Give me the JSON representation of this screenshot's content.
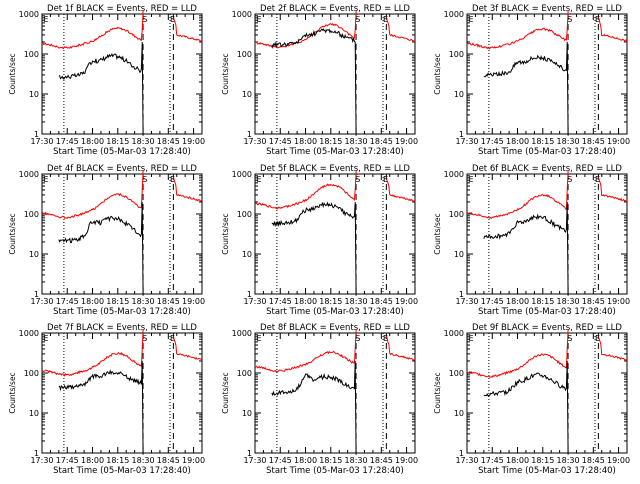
{
  "chart_data": [
    {
      "type": "line",
      "title": "Det 1f BLACK = Events, RED = LLD",
      "xlabel": "Start Time (05-Mar-03 17:28:40)",
      "ylabel": "Counts/sec",
      "x_ticks": [
        "17:30",
        "17:45",
        "18:00",
        "18:15",
        "18:30",
        "18:45",
        "19:00"
      ],
      "y_ticks": [
        "1",
        "10",
        "100",
        "1000"
      ],
      "ylim": [
        1,
        1000
      ],
      "yscale": "log",
      "series": [
        {
          "name": "Events",
          "color": "#000000"
        },
        {
          "name": "LLD",
          "color": "#ff0000"
        }
      ]
    },
    {
      "type": "line",
      "title": "Det 2f BLACK = Events, RED = LLD",
      "xlabel": "Start Time (05-Mar-03 17:28:40)",
      "ylabel": "Counts/sec",
      "x_ticks": [
        "17:30",
        "17:45",
        "18:00",
        "18:15",
        "18:30",
        "18:45",
        "19:00"
      ],
      "y_ticks": [
        "1",
        "10",
        "100",
        "1000"
      ],
      "ylim": [
        1,
        1000
      ],
      "yscale": "log",
      "series": [
        {
          "name": "Events",
          "color": "#000000"
        },
        {
          "name": "LLD",
          "color": "#ff0000"
        }
      ]
    },
    {
      "type": "line",
      "title": "Det 3f BLACK = Events, RED = LLD",
      "xlabel": "Start Time (05-Mar-03 17:28:40)",
      "ylabel": "Counts/sec",
      "x_ticks": [
        "17:30",
        "17:45",
        "18:00",
        "18:15",
        "18:30",
        "18:45",
        "19:00"
      ],
      "y_ticks": [
        "1",
        "10",
        "100",
        "1000"
      ],
      "ylim": [
        1,
        1000
      ],
      "yscale": "log",
      "series": [
        {
          "name": "Events",
          "color": "#000000"
        },
        {
          "name": "LLD",
          "color": "#ff0000"
        }
      ]
    },
    {
      "type": "line",
      "title": "Det 4f BLACK = Events, RED = LLD",
      "xlabel": "Start Time (05-Mar-03 17:28:40)",
      "ylabel": "Counts/sec",
      "x_ticks": [
        "17:30",
        "17:45",
        "18:00",
        "18:15",
        "18:30",
        "18:45",
        "19:00"
      ],
      "y_ticks": [
        "1",
        "10",
        "100",
        "1000"
      ],
      "ylim": [
        1,
        1000
      ],
      "yscale": "log",
      "series": [
        {
          "name": "Events",
          "color": "#000000"
        },
        {
          "name": "LLD",
          "color": "#ff0000"
        }
      ]
    },
    {
      "type": "line",
      "title": "Det 5f BLACK = Events, RED = LLD",
      "xlabel": "Start Time (05-Mar-03 17:28:40)",
      "ylabel": "Counts/sec",
      "x_ticks": [
        "17:30",
        "17:45",
        "18:00",
        "18:15",
        "18:30",
        "18:45",
        "19:00"
      ],
      "y_ticks": [
        "1",
        "10",
        "100",
        "1000"
      ],
      "ylim": [
        1,
        1000
      ],
      "yscale": "log",
      "series": [
        {
          "name": "Events",
          "color": "#000000"
        },
        {
          "name": "LLD",
          "color": "#ff0000"
        }
      ]
    },
    {
      "type": "line",
      "title": "Det 6f BLACK = Events, RED = LLD",
      "xlabel": "Start Time (05-Mar-03 17:28:40)",
      "ylabel": "Counts/sec",
      "x_ticks": [
        "17:30",
        "17:45",
        "18:00",
        "18:15",
        "18:30",
        "18:45",
        "19:00"
      ],
      "y_ticks": [
        "1",
        "10",
        "100",
        "1000"
      ],
      "ylim": [
        1,
        1000
      ],
      "yscale": "log",
      "series": [
        {
          "name": "Events",
          "color": "#000000"
        },
        {
          "name": "LLD",
          "color": "#ff0000"
        }
      ]
    },
    {
      "type": "line",
      "title": "Det 7f BLACK = Events, RED = LLD",
      "xlabel": "Start Time (05-Mar-03 17:28:40)",
      "ylabel": "Counts/sec",
      "x_ticks": [
        "17:30",
        "17:45",
        "18:00",
        "18:15",
        "18:30",
        "18:45",
        "19:00"
      ],
      "y_ticks": [
        "1",
        "10",
        "100",
        "1000"
      ],
      "ylim": [
        1,
        1000
      ],
      "yscale": "log",
      "series": [
        {
          "name": "Events",
          "color": "#000000"
        },
        {
          "name": "LLD",
          "color": "#ff0000"
        }
      ]
    },
    {
      "type": "line",
      "title": "Det 8f BLACK = Events, RED = LLD",
      "xlabel": "Start Time (05-Mar-03 17:28:40)",
      "ylabel": "Counts/sec",
      "x_ticks": [
        "17:30",
        "17:45",
        "18:00",
        "18:15",
        "18:30",
        "18:45",
        "19:00"
      ],
      "y_ticks": [
        "1",
        "10",
        "100",
        "1000"
      ],
      "ylim": [
        1,
        1000
      ],
      "yscale": "log",
      "series": [
        {
          "name": "Events",
          "color": "#000000"
        },
        {
          "name": "LLD",
          "color": "#ff0000"
        }
      ]
    },
    {
      "type": "line",
      "title": "Det 9f BLACK = Events, RED = LLD",
      "xlabel": "Start Time (05-Mar-03 17:28:40)",
      "ylabel": "Counts/sec",
      "x_ticks": [
        "17:30",
        "17:45",
        "18:00",
        "18:15",
        "18:30",
        "18:45",
        "19:00"
      ],
      "y_ticks": [
        "1",
        "10",
        "100",
        "1000"
      ],
      "ylim": [
        1,
        1000
      ],
      "yscale": "log",
      "series": [
        {
          "name": "Events",
          "color": "#000000"
        },
        {
          "name": "LLD",
          "color": "#ff0000"
        }
      ]
    }
  ],
  "markers": {
    "start_marker": "S",
    "end_marker": "E"
  }
}
